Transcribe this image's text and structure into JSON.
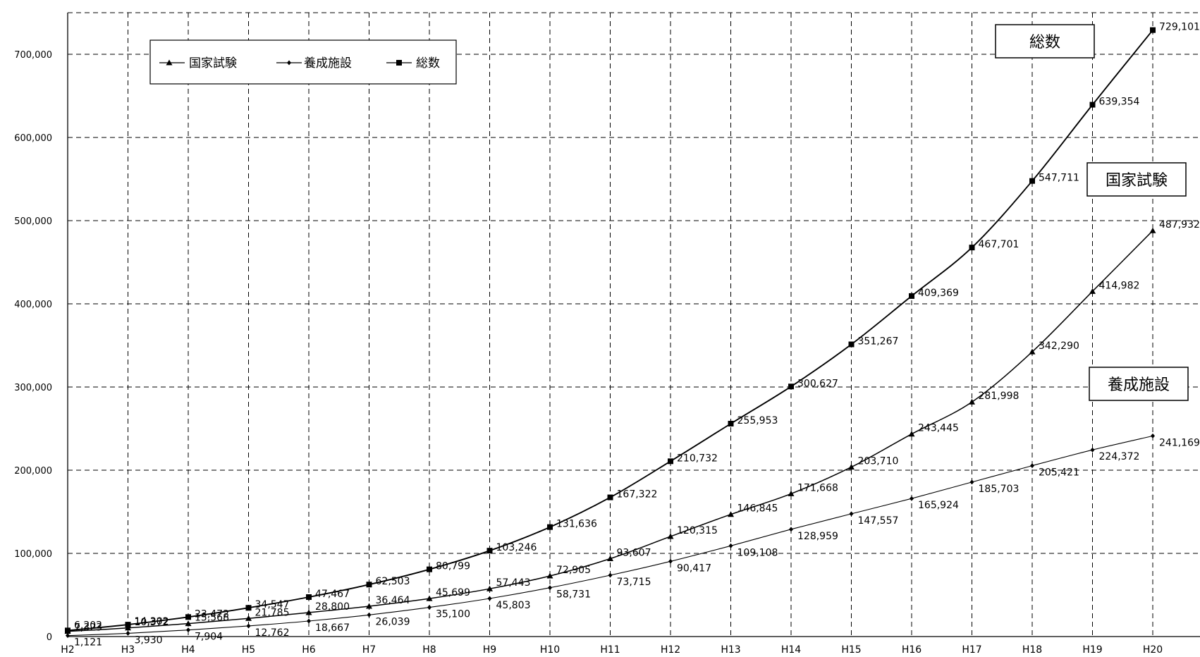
{
  "chart_data": {
    "type": "line",
    "categories": [
      "H2",
      "H3",
      "H4",
      "H5",
      "H6",
      "H7",
      "H8",
      "H9",
      "H10",
      "H11",
      "H12",
      "H13",
      "H14",
      "H15",
      "H16",
      "H17",
      "H18",
      "H19",
      "H20"
    ],
    "ylim": [
      0,
      750000
    ],
    "yticks": [
      0,
      100000,
      200000,
      300000,
      400000,
      500000,
      600000,
      700000
    ],
    "ytick_labels": [
      "0",
      "100,000",
      "200,000",
      "300,000",
      "400,000",
      "500,000",
      "600,000",
      "700,000"
    ],
    "grid": true,
    "legend_position": "top-left",
    "series": [
      {
        "name": "国家試験",
        "marker": "triangle",
        "values": [
          6202,
          10372,
          15568,
          21785,
          28800,
          36464,
          45699,
          57443,
          72905,
          93607,
          120315,
          146845,
          171668,
          203710,
          243445,
          281998,
          342290,
          414982,
          487932
        ],
        "labels": [
          "6,202",
          "10,372",
          "15,568",
          "21,785",
          "28,800",
          "36,464",
          "45,699",
          "57,443",
          "72,905",
          "93,607",
          "120,315",
          "146,845",
          "171,668",
          "203,710",
          "243,445",
          "281,998",
          "342,290",
          "414,982",
          "487,932"
        ]
      },
      {
        "name": "養成施設",
        "marker": "diamond",
        "values": [
          1121,
          3930,
          7904,
          12762,
          18667,
          26039,
          35100,
          45803,
          58731,
          73715,
          90417,
          109108,
          128959,
          147557,
          165924,
          185703,
          205421,
          224372,
          241169
        ],
        "labels": [
          "1,121",
          "3,930",
          "7,904",
          "12,762",
          "18,667",
          "26,039",
          "35,100",
          "45,803",
          "58,731",
          "73,715",
          "90,417",
          "109,108",
          "128,959",
          "147,557",
          "165,924",
          "185,703",
          "205,421",
          "224,372",
          "241,169"
        ]
      },
      {
        "name": "総数",
        "marker": "square",
        "values": [
          7323,
          14302,
          23472,
          34547,
          47467,
          62503,
          80799,
          103246,
          131636,
          167322,
          210732,
          255953,
          300627,
          351267,
          409369,
          467701,
          547711,
          639354,
          729101
        ],
        "labels": [
          "7,323",
          "14,302",
          "23,472",
          "34,547",
          "47,467",
          "62,503",
          "80,799",
          "103,246",
          "131,636",
          "167,322",
          "210,732",
          "255,953",
          "300,627",
          "351,267",
          "409,369",
          "467,701",
          "547,711",
          "639,354",
          "729,101"
        ]
      }
    ],
    "callouts": [
      "総数",
      "国家試験",
      "養成施設"
    ]
  }
}
